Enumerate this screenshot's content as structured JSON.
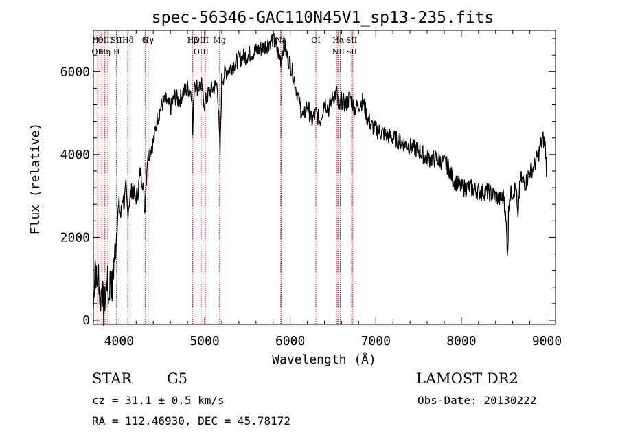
{
  "chart_data": {
    "type": "line",
    "title": "spec-56346-GAC110N45V1_sp13-235.fits",
    "xlabel": "Wavelength (Å)",
    "ylabel": "Flux (relative)",
    "xlim": [
      3700,
      9100
    ],
    "ylim": [
      -100,
      7000
    ],
    "xticks": [
      4000,
      5000,
      6000,
      7000,
      8000,
      9000
    ],
    "yticks": [
      0,
      2000,
      4000,
      6000
    ],
    "xtick_labels": [
      "4000",
      "5000",
      "6000",
      "7000",
      "8000",
      "9000"
    ],
    "ytick_labels": [
      "0",
      "2000",
      "4000",
      "6000"
    ],
    "grid": false,
    "line_color": "#000000",
    "marker_color": "#cc0000",
    "series": [
      {
        "x": [
          3700,
          3720,
          3740,
          3760,
          3780,
          3800,
          3820,
          3840,
          3860,
          3880,
          3900,
          3920,
          3940,
          3960,
          3980,
          4000,
          4020,
          4040,
          4060,
          4080,
          4100,
          4130,
          4160,
          4190,
          4220,
          4250,
          4280,
          4300,
          4330,
          4360,
          4400,
          4450,
          4500,
          4550,
          4600,
          4650,
          4700,
          4750,
          4800,
          4850,
          4861,
          4880,
          4920,
          4960,
          5000,
          5050,
          5100,
          5150,
          5180,
          5200,
          5250,
          5300,
          5400,
          5500,
          5600,
          5700,
          5800,
          5850,
          5890,
          5930,
          5960,
          6000,
          6050,
          6100,
          6150,
          6200,
          6250,
          6300,
          6350,
          6400,
          6450,
          6500,
          6550,
          6563,
          6600,
          6650,
          6700,
          6750,
          6800,
          6850,
          6900,
          6950,
          7000,
          7100,
          7200,
          7300,
          7400,
          7500,
          7600,
          7700,
          7800,
          7850,
          7900,
          7950,
          8000,
          8100,
          8200,
          8300,
          8400,
          8450,
          8500,
          8530,
          8542,
          8560,
          8600,
          8640,
          8662,
          8680,
          8700,
          8750,
          8800,
          8850,
          8900,
          8950,
          8980,
          9000
        ],
        "y": [
          300,
          1500,
          800,
          1200,
          400,
          900,
          200,
          600,
          1000,
          500,
          1100,
          700,
          1400,
          1800,
          2500,
          2800,
          2500,
          3000,
          2800,
          3200,
          2600,
          3000,
          3200,
          2900,
          3100,
          3600,
          3300,
          2600,
          3900,
          4100,
          4300,
          4900,
          5200,
          5300,
          5100,
          5400,
          5300,
          5500,
          5600,
          5500,
          4500,
          5800,
          5600,
          5700,
          5200,
          5500,
          5600,
          5700,
          4000,
          5800,
          6000,
          6100,
          6300,
          6400,
          6500,
          6600,
          6800,
          6500,
          6300,
          6700,
          6400,
          6200,
          5800,
          5300,
          4900,
          5200,
          4800,
          5000,
          4800,
          5300,
          5100,
          5400,
          5500,
          5000,
          5300,
          5200,
          5400,
          5100,
          5200,
          5300,
          4900,
          4700,
          4600,
          4500,
          4400,
          4300,
          4200,
          4100,
          3900,
          3900,
          3800,
          3700,
          3400,
          3300,
          3200,
          3200,
          3100,
          3100,
          3000,
          2900,
          3000,
          2000,
          1900,
          3000,
          3100,
          3200,
          2300,
          3300,
          3400,
          3300,
          3600,
          3700,
          4000,
          4400,
          4200,
          3500
        ]
      }
    ],
    "lines": [
      {
        "x": 3750,
        "labels": [
          "Hθ",
          "OII"
        ]
      },
      {
        "x": 3798
      },
      {
        "x": 3835,
        "labels": [
          "OIII",
          "Hη"
        ]
      },
      {
        "x": 3869
      },
      {
        "x": 3970,
        "labels": [
          "SII",
          "H"
        ]
      },
      {
        "x": 4102,
        "labels": [
          "Hδ"
        ]
      },
      {
        "x": 4304,
        "labels": [
          "G"
        ]
      },
      {
        "x": 4340,
        "labels": [
          "Hγ"
        ]
      },
      {
        "x": 4861,
        "labels": [
          "Hβ"
        ]
      },
      {
        "x": 4959,
        "labels": [
          "OIII",
          "OIII"
        ]
      },
      {
        "x": 5007
      },
      {
        "x": 5175,
        "labels": [
          "Mg"
        ]
      },
      {
        "x": 5890,
        "labels": [
          "Na"
        ]
      },
      {
        "x": 5896
      },
      {
        "x": 6300,
        "labels": [
          "OI"
        ]
      },
      {
        "x": 6548
      },
      {
        "x": 6563,
        "labels": [
          "Hα",
          "NII"
        ]
      },
      {
        "x": 6584
      },
      {
        "x": 6717,
        "labels": [
          "SII",
          "SII"
        ]
      },
      {
        "x": 6731
      }
    ]
  },
  "info": {
    "object_class": "STAR",
    "subclass": "G5",
    "survey": "LAMOST DR2",
    "cz": "cz = 31.1 ± 0.5 km/s",
    "obs_date": "Obs-Date: 20130222",
    "coords": "RA = 112.46930, DEC =  45.78172"
  }
}
